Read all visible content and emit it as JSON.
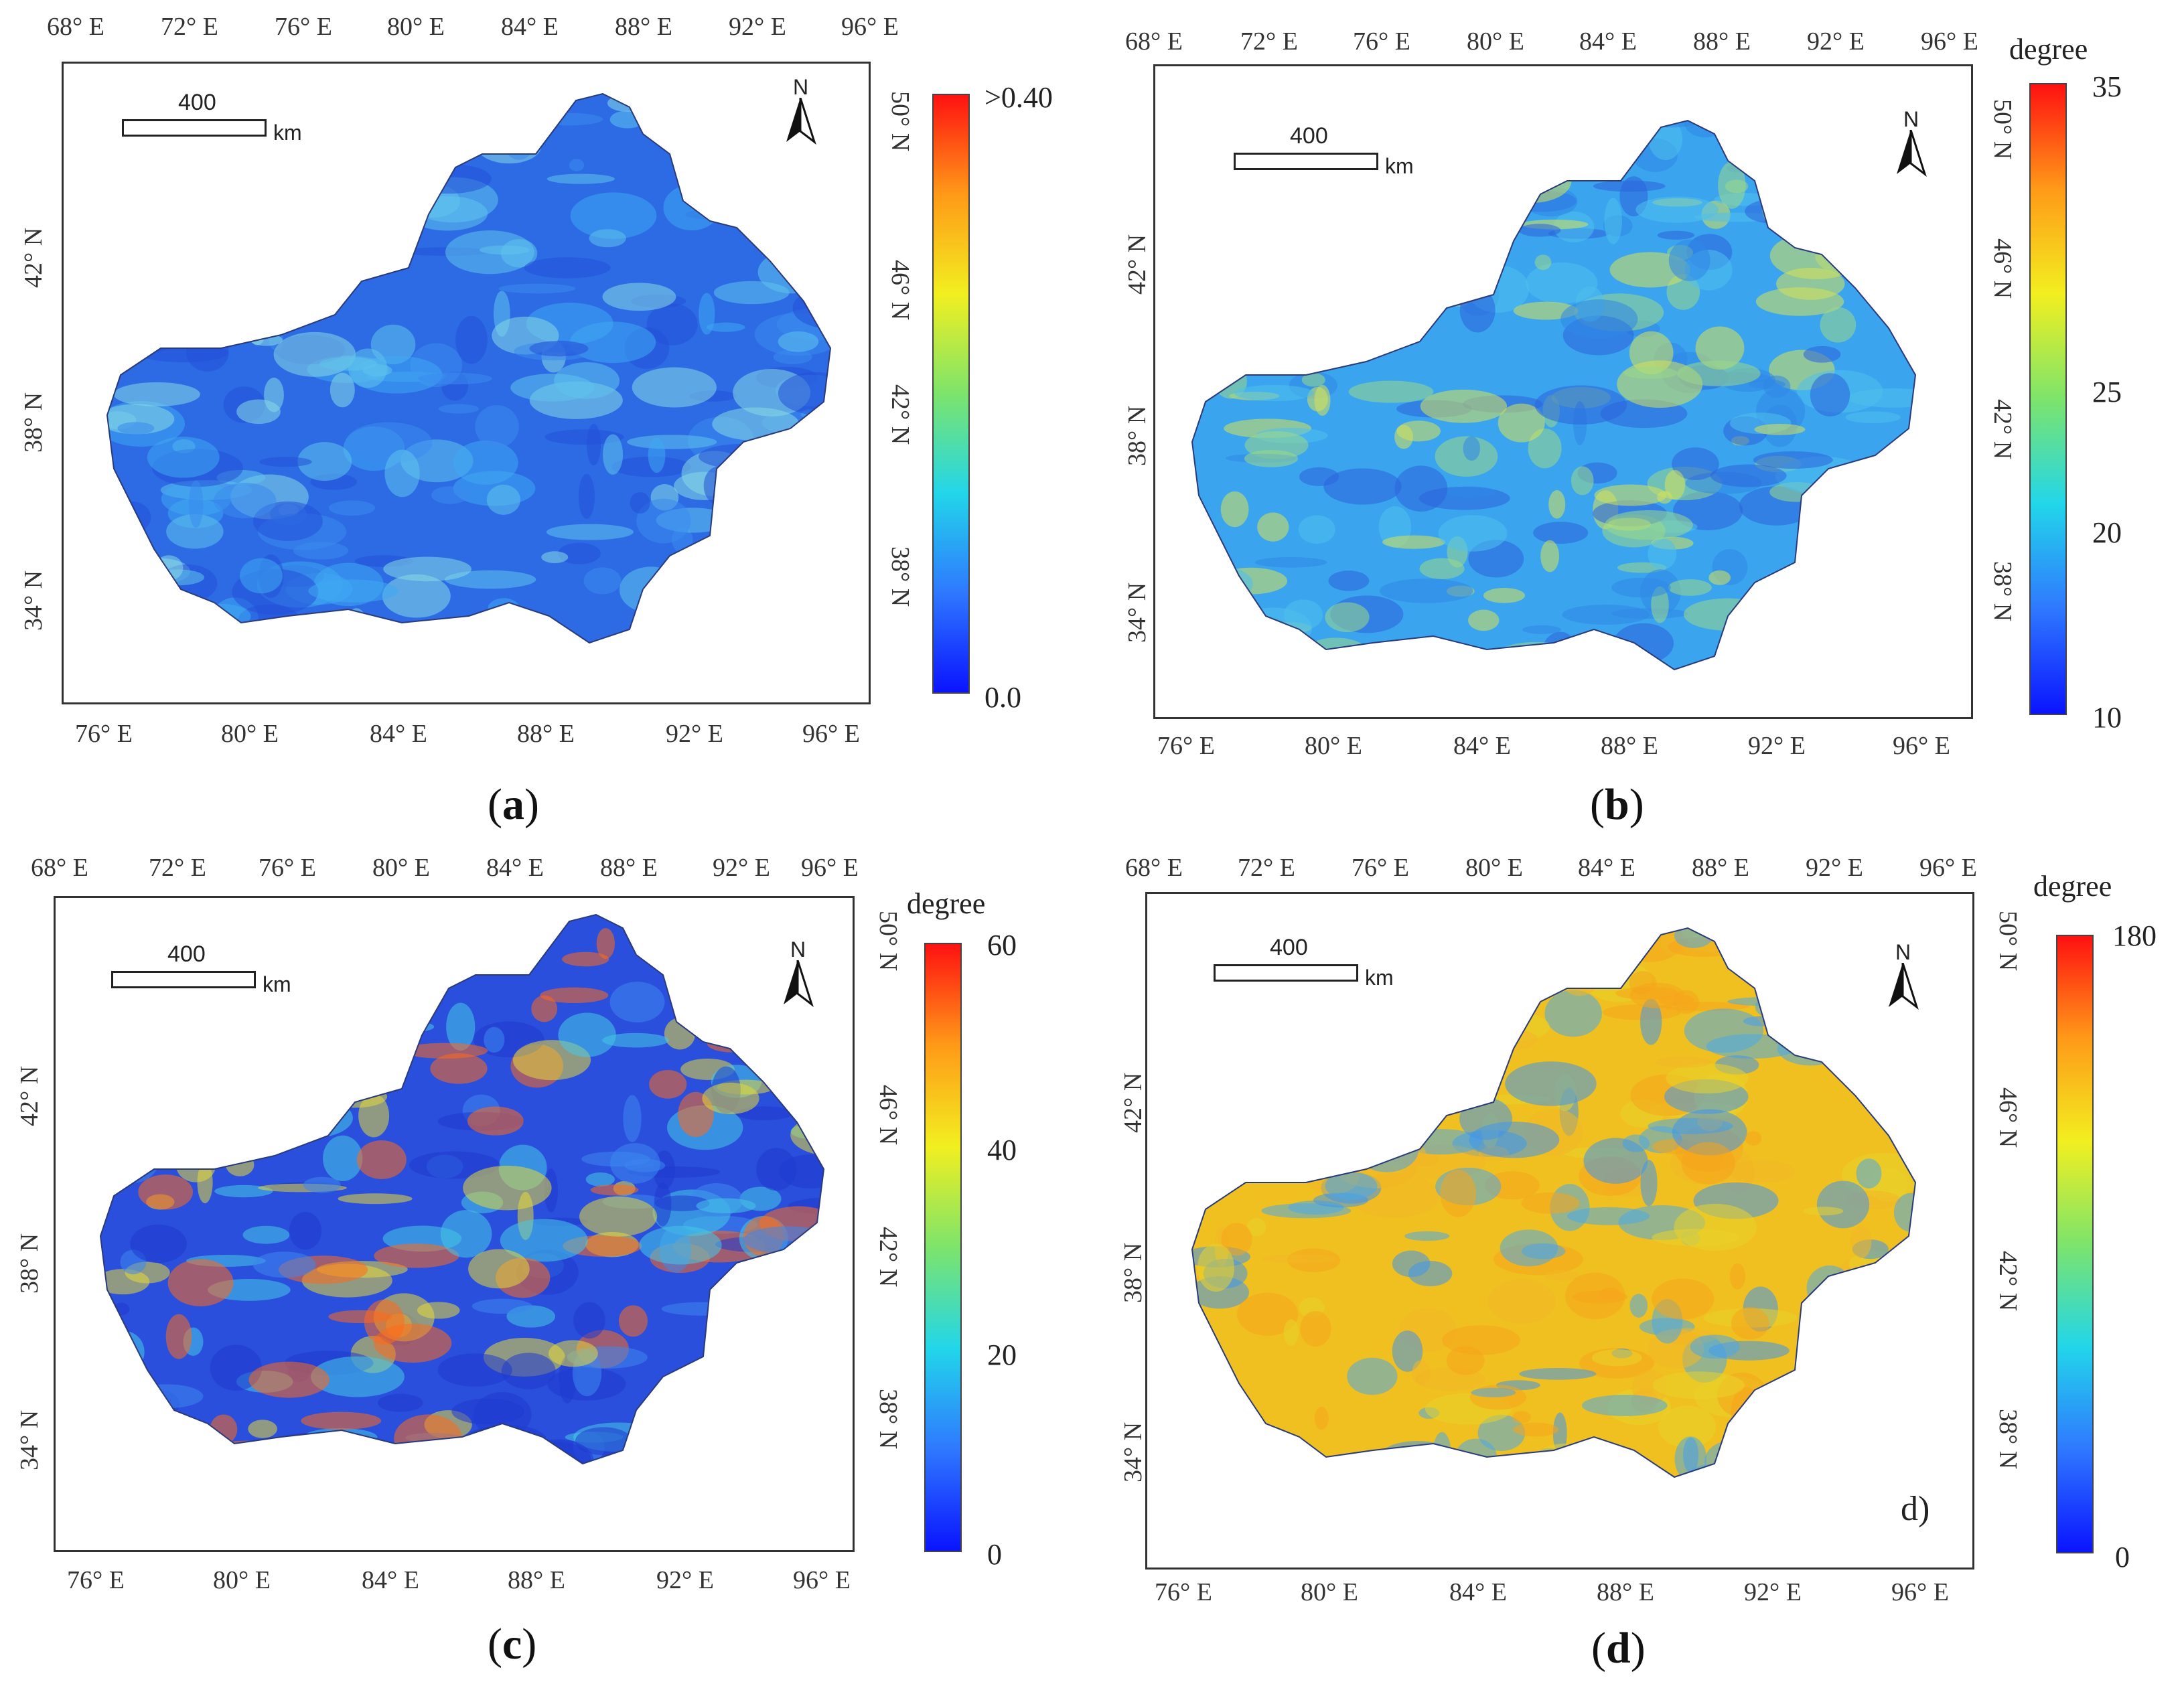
{
  "panels": [
    {
      "id": "a",
      "caption_letter": "a",
      "top_ticks": [
        "68° E",
        "72° E",
        "76° E",
        "80° E",
        "84° E",
        "88° E",
        "92° E",
        "96° E"
      ],
      "bottom_ticks": [
        "76° E",
        "80° E",
        "84° E",
        "88° E",
        "92° E",
        "96° E"
      ],
      "left_ticks": [
        "42° N",
        "38° N",
        "34° N"
      ],
      "right_ticks": [
        "50° N",
        "46° N",
        "42° N",
        "38° N"
      ],
      "scale_value": "400",
      "scale_unit": "km",
      "north_label": "N",
      "colorbar": {
        "title": "",
        "max_label": ">0.40",
        "mid_labels": [],
        "min_label": "0.0",
        "colors": [
          "#0a14ff",
          "#2f78ff",
          "#22d6ea",
          "#7de46b",
          "#f2ef20",
          "#ff9a18",
          "#ff1111"
        ]
      },
      "map_palette": [
        "#2c6be4",
        "#3a8aee",
        "#3fa7f2",
        "#5ec2ec",
        "#2550d8",
        "#86d8e4"
      ]
    },
    {
      "id": "b",
      "caption_letter": "b",
      "top_ticks": [
        "68° E",
        "72° E",
        "76° E",
        "80° E",
        "84° E",
        "88° E",
        "92° E",
        "96° E"
      ],
      "bottom_ticks": [
        "76° E",
        "80° E",
        "84° E",
        "88° E",
        "92° E",
        "96° E"
      ],
      "left_ticks": [
        "42° N",
        "38° N",
        "34° N"
      ],
      "right_ticks": [
        "50° N",
        "46° N",
        "42° N",
        "38° N"
      ],
      "scale_value": "400",
      "scale_unit": "km",
      "north_label": "N",
      "colorbar": {
        "title": "degree",
        "max_label": "35",
        "mid_labels": [
          "25",
          "20"
        ],
        "min_label": "10",
        "colors": [
          "#0a14ff",
          "#2f78ff",
          "#22d6ea",
          "#7de46b",
          "#f2ef20",
          "#ff9a18",
          "#ff1111"
        ]
      },
      "map_palette": [
        "#3aa5ee",
        "#4fc0ec",
        "#2f86e6",
        "#9ad98a",
        "#d6e25a",
        "#2c62dc"
      ]
    },
    {
      "id": "c",
      "caption_letter": "c",
      "top_ticks": [
        "68° E",
        "72° E",
        "76° E",
        "80° E",
        "84° E",
        "88° E",
        "92° E",
        "96° E"
      ],
      "bottom_ticks": [
        "76° E",
        "80° E",
        "84° E",
        "88° E",
        "92° E",
        "96° E"
      ],
      "left_ticks": [
        "42° N",
        "38° N",
        "34° N"
      ],
      "right_ticks": [
        "50° N",
        "46° N",
        "42° N",
        "38° N"
      ],
      "scale_value": "400",
      "scale_unit": "km",
      "north_label": "N",
      "colorbar": {
        "title": "degree",
        "max_label": "60",
        "mid_labels": [
          "40",
          "20"
        ],
        "min_label": "0",
        "colors": [
          "#0a14ff",
          "#2f78ff",
          "#22d6ea",
          "#7de46b",
          "#f2ef20",
          "#ff9a18",
          "#ff1111"
        ]
      },
      "map_palette": [
        "#2a4fdc",
        "#3c86ee",
        "#45c8e6",
        "#e3d83a",
        "#ff6a1a",
        "#1f3ad0"
      ]
    },
    {
      "id": "d",
      "caption_letter": "d",
      "panel_tag": "d)",
      "top_ticks": [
        "68° E",
        "72° E",
        "76° E",
        "80° E",
        "84° E",
        "88° E",
        "92° E",
        "96° E"
      ],
      "bottom_ticks": [
        "76° E",
        "80° E",
        "84° E",
        "88° E",
        "92° E",
        "96° E"
      ],
      "left_ticks": [
        "42° N",
        "38° N",
        "34° N"
      ],
      "right_ticks": [
        "50° N",
        "46° N",
        "42° N",
        "38° N"
      ],
      "scale_value": "400",
      "scale_unit": "km",
      "north_label": "N",
      "colorbar": {
        "title": "degree",
        "max_label": "180",
        "mid_labels": [],
        "min_label": "0",
        "colors": [
          "#0a14ff",
          "#2f78ff",
          "#22d6ea",
          "#7de46b",
          "#f2ef20",
          "#ff9a18",
          "#ff1111"
        ]
      },
      "map_palette": [
        "#f0c020",
        "#f5a41c",
        "#e9d22a",
        "#3f96ec",
        "#f2b626",
        "#4aa8e8"
      ]
    }
  ]
}
